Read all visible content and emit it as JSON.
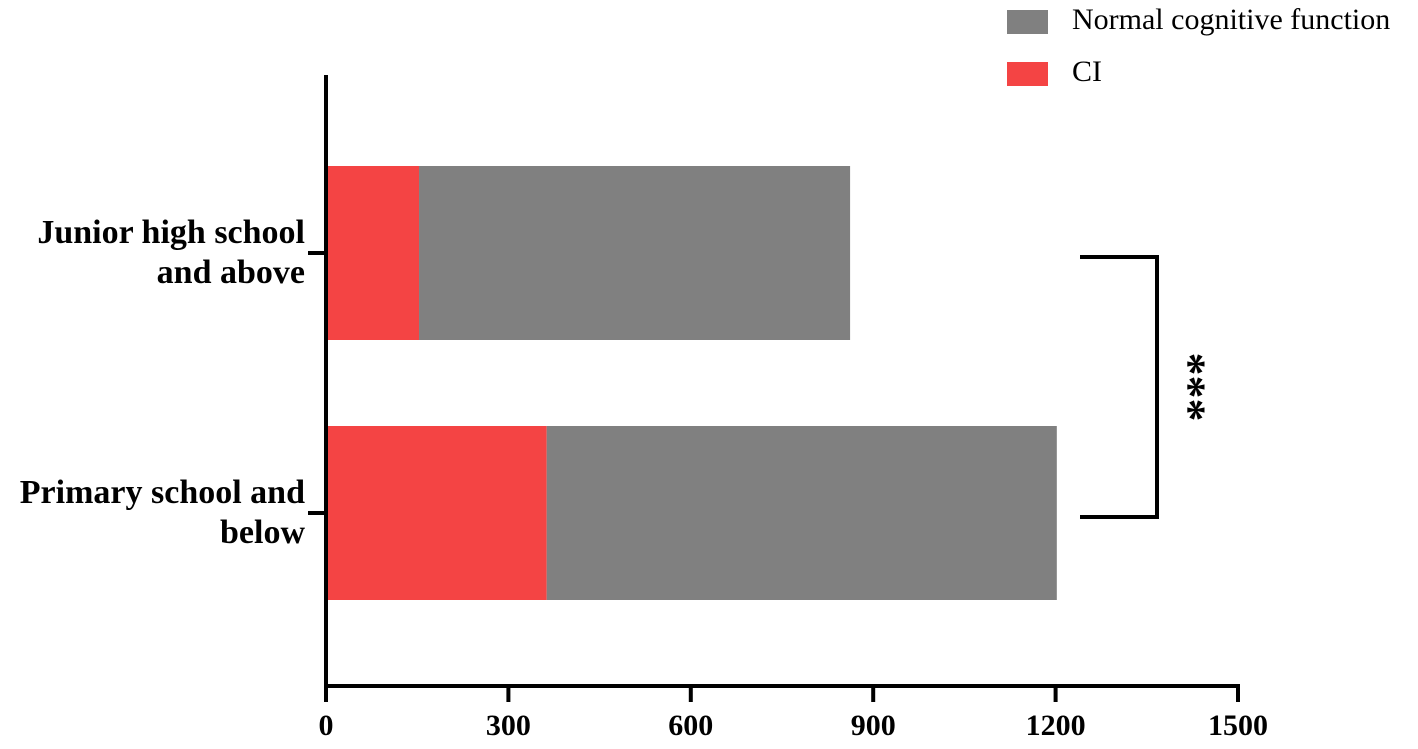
{
  "chart_data": {
    "type": "bar",
    "orientation": "horizontal",
    "stacked": true,
    "categories": [
      "Junior high school and above",
      "Primary school and below"
    ],
    "series": [
      {
        "name": "CI",
        "color": "#f44444",
        "values": [
          153,
          363
        ]
      },
      {
        "name": "Normal cognitive function",
        "color": "#808080",
        "values": [
          709,
          839
        ]
      }
    ],
    "xlim": [
      0,
      1500
    ],
    "xticks": [
      0,
      300,
      600,
      900,
      1200,
      1500
    ],
    "annotation": "***"
  }
}
